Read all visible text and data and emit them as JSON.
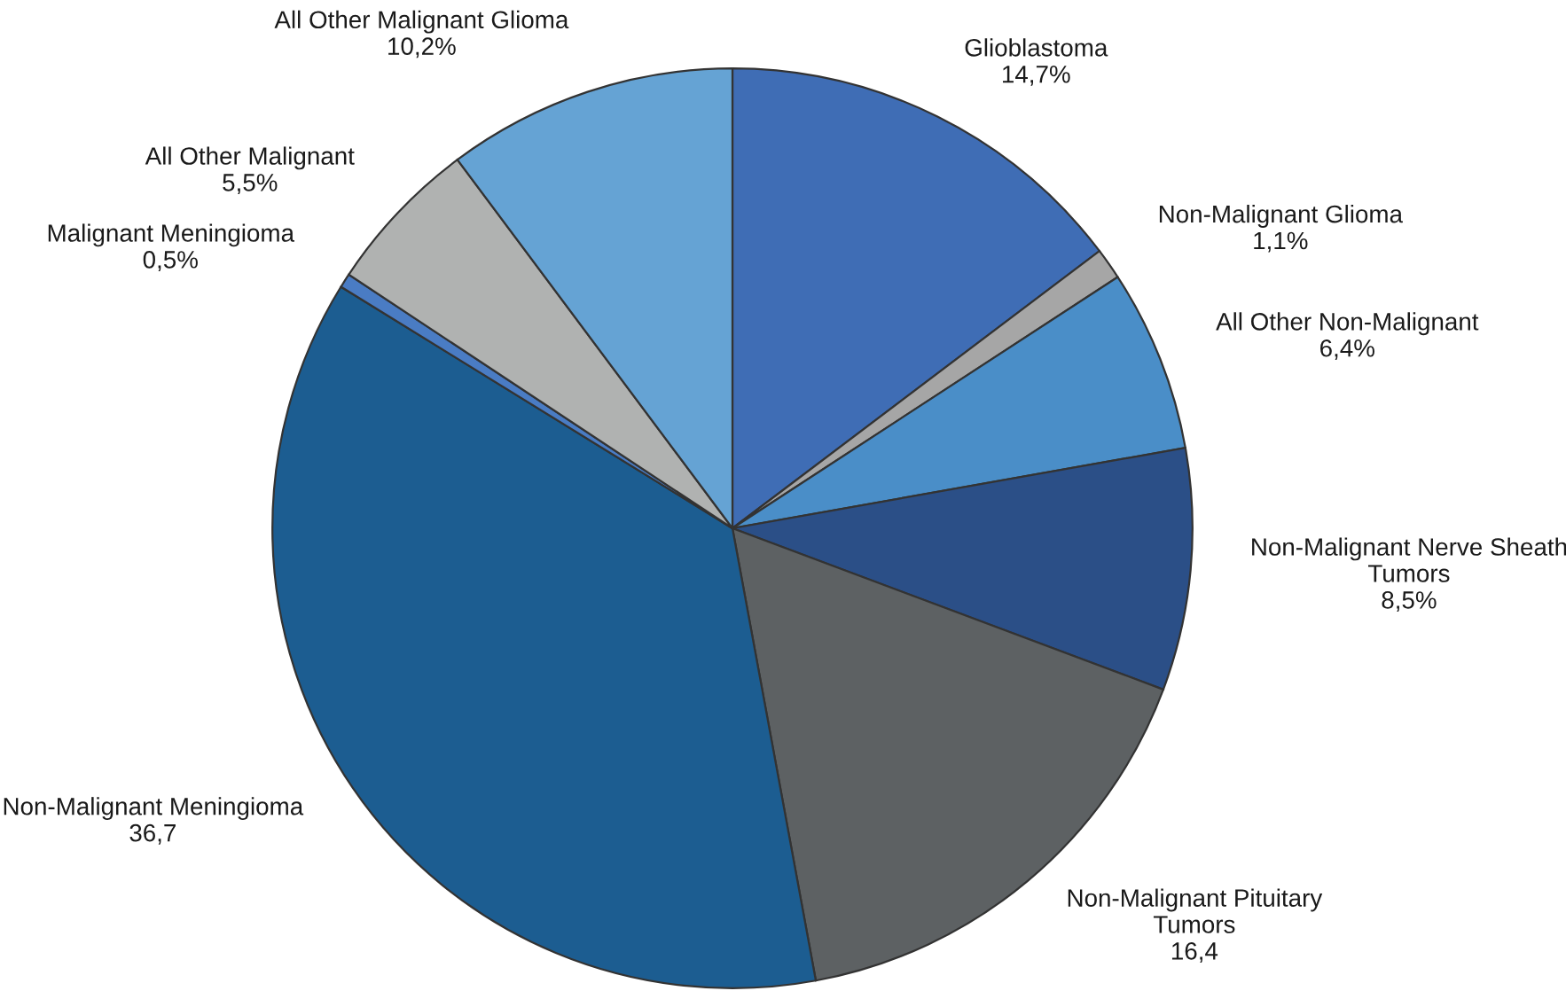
{
  "chart_data": {
    "type": "pie",
    "categories": [
      "Glioblastoma",
      "Non-Malignant Glioma",
      "All Other Non-Malignant",
      "Non-Malignant Nerve Sheath\nTumors",
      "Non-Malignant Pituitary\nTumors",
      "Non-Malignant Meningioma",
      "Malignant Meningioma",
      "All Other Malignant",
      "All Other Malignant Glioma"
    ],
    "values": [
      14.7,
      1.1,
      6.4,
      8.5,
      16.4,
      36.7,
      0.5,
      5.5,
      10.2
    ],
    "value_labels": [
      "14,7%",
      "1,1%",
      "6,4%",
      "8,5%",
      "16,4",
      "36,7",
      "0,5%",
      "5,5%",
      "10,2%"
    ],
    "colors": [
      "#3f6db5",
      "#a6a6a6",
      "#4a8ec8",
      "#2b4f87",
      "#5d6163",
      "#1c5d91",
      "#4a7cc4",
      "#b0b2b1",
      "#65a3d4"
    ],
    "legend": false
  }
}
